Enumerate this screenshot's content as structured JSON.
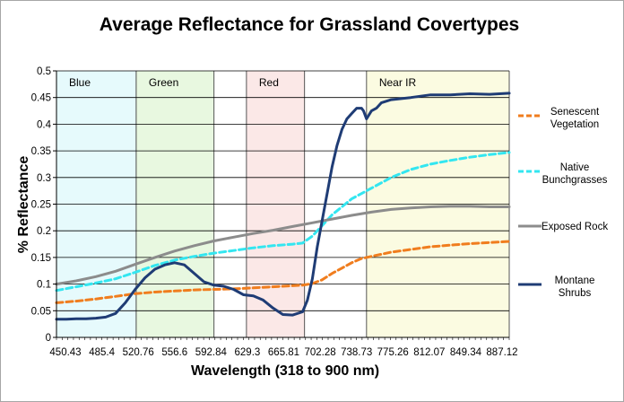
{
  "chart_data": {
    "type": "line",
    "title": "Average Reflectance for Grassland Covertypes",
    "xlabel": "Wavelength (318 to 900 nm)",
    "ylabel": "% Reflectance",
    "xlim": [
      440,
      900
    ],
    "ylim": [
      0,
      0.5
    ],
    "y_ticks": [
      "0",
      "0.05",
      "0.1",
      "0.15",
      "0.2",
      "0.25",
      "0.3",
      "0.35",
      "0.4",
      "0.45",
      "0.5"
    ],
    "x_ticks": [
      "450.43",
      "485.4",
      "520.76",
      "556.6",
      "592.84",
      "629.3",
      "665.81",
      "702.28",
      "738.73",
      "775.26",
      "812.07",
      "849.34",
      "887.12"
    ],
    "grid": "horizontal",
    "legend_position": "right",
    "bands": [
      {
        "label": "Blue",
        "start": 440,
        "end": 521,
        "color": "#e6fafc"
      },
      {
        "label": "Green",
        "start": 521,
        "end": 600,
        "color": "#e8f8e0"
      },
      {
        "label": "Red",
        "start": 633,
        "end": 692,
        "color": "#fbe8e7"
      },
      {
        "label": "Near IR",
        "start": 755,
        "end": 900,
        "color": "#fbfbe1"
      }
    ],
    "series": [
      {
        "name": "Senescent Vegetation",
        "color": "#f07d1e",
        "dash": "7,4",
        "x": [
          440,
          460,
          480,
          500,
          520,
          540,
          560,
          580,
          600,
          620,
          640,
          660,
          680,
          690,
          700,
          710,
          720,
          730,
          740,
          750,
          760,
          780,
          800,
          820,
          840,
          860,
          880,
          900
        ],
        "y": [
          0.065,
          0.068,
          0.072,
          0.077,
          0.082,
          0.085,
          0.087,
          0.089,
          0.09,
          0.091,
          0.093,
          0.095,
          0.097,
          0.098,
          0.101,
          0.108,
          0.12,
          0.13,
          0.14,
          0.148,
          0.152,
          0.16,
          0.165,
          0.17,
          0.173,
          0.176,
          0.178,
          0.18
        ]
      },
      {
        "name": "Native Bunchgrasses",
        "color": "#33e6f0",
        "dash": "7,4",
        "x": [
          440,
          460,
          480,
          500,
          520,
          540,
          560,
          580,
          600,
          620,
          640,
          660,
          680,
          690,
          700,
          710,
          720,
          740,
          760,
          780,
          800,
          820,
          840,
          860,
          880,
          900
        ],
        "y": [
          0.088,
          0.095,
          0.102,
          0.11,
          0.122,
          0.135,
          0.145,
          0.152,
          0.158,
          0.163,
          0.168,
          0.172,
          0.175,
          0.177,
          0.19,
          0.21,
          0.23,
          0.26,
          0.28,
          0.3,
          0.315,
          0.325,
          0.332,
          0.338,
          0.343,
          0.347
        ]
      },
      {
        "name": "Exposed Rock",
        "color": "#8c8c8c",
        "dash": "",
        "x": [
          440,
          460,
          480,
          500,
          520,
          540,
          560,
          580,
          600,
          620,
          640,
          660,
          680,
          700,
          720,
          740,
          760,
          780,
          800,
          820,
          840,
          860,
          880,
          900
        ],
        "y": [
          0.1,
          0.106,
          0.114,
          0.124,
          0.137,
          0.15,
          0.162,
          0.172,
          0.181,
          0.188,
          0.195,
          0.201,
          0.208,
          0.215,
          0.222,
          0.229,
          0.235,
          0.24,
          0.243,
          0.245,
          0.246,
          0.246,
          0.245,
          0.245
        ]
      },
      {
        "name": "Montane Shrubs",
        "color": "#1f3c75",
        "dash": "",
        "x": [
          440,
          450,
          460,
          470,
          480,
          490,
          500,
          510,
          520,
          530,
          540,
          550,
          560,
          570,
          580,
          590,
          600,
          610,
          620,
          630,
          640,
          650,
          660,
          670,
          680,
          690,
          695,
          700,
          705,
          710,
          715,
          720,
          725,
          730,
          735,
          740,
          745,
          750,
          752,
          755,
          760,
          765,
          770,
          780,
          800,
          820,
          840,
          860,
          880,
          900
        ],
        "y": [
          0.034,
          0.034,
          0.035,
          0.035,
          0.036,
          0.038,
          0.045,
          0.065,
          0.09,
          0.112,
          0.128,
          0.136,
          0.14,
          0.136,
          0.12,
          0.104,
          0.098,
          0.096,
          0.09,
          0.08,
          0.078,
          0.07,
          0.055,
          0.043,
          0.042,
          0.048,
          0.07,
          0.11,
          0.17,
          0.22,
          0.27,
          0.32,
          0.36,
          0.39,
          0.41,
          0.42,
          0.43,
          0.43,
          0.425,
          0.41,
          0.425,
          0.43,
          0.44,
          0.446,
          0.45,
          0.455,
          0.455,
          0.457,
          0.456,
          0.458
        ]
      }
    ],
    "legend": [
      {
        "line1": "Senescent",
        "line2": "Vegetation"
      },
      {
        "line1": "Native",
        "line2": "Bunchgrasses"
      },
      {
        "line1": "Exposed Rock",
        "line2": ""
      },
      {
        "line1": "Montane",
        "line2": "Shrubs"
      }
    ]
  }
}
